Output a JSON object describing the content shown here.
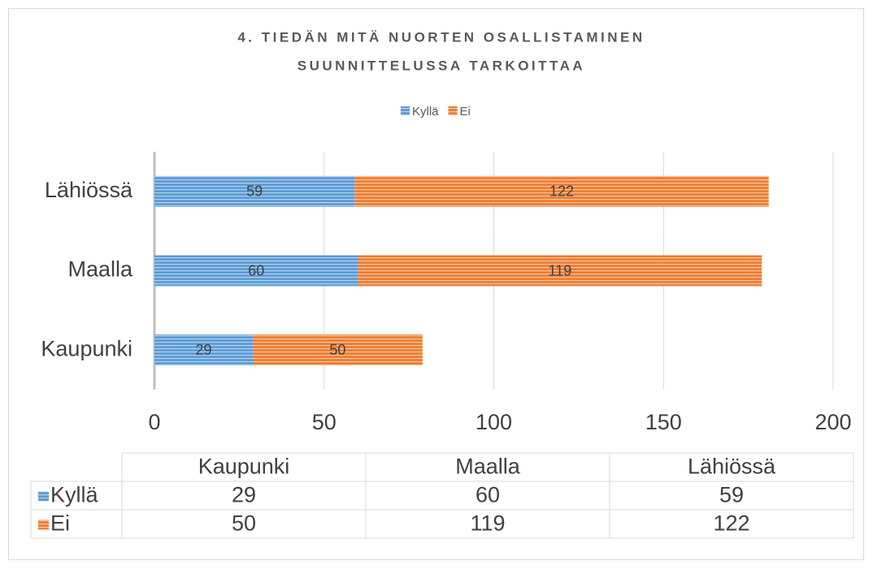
{
  "chart_data": {
    "type": "stacked-bar-horizontal",
    "title": [
      "4. TIEDÄN MITÄ NUORTEN OSALLISTAMINEN",
      "SUUNNITTELUSSA TARKOITTAA"
    ],
    "categories": [
      "Kaupunki",
      "Maalla",
      "Lähiössä"
    ],
    "series": [
      {
        "name": "Kyllä",
        "color": "#5b9bd5",
        "values": [
          29,
          60,
          59
        ]
      },
      {
        "name": "Ei",
        "color": "#ed7d31",
        "values": [
          50,
          119,
          122
        ]
      }
    ],
    "xlim": [
      0,
      200
    ],
    "xticks": [
      0,
      50,
      100,
      150,
      200
    ],
    "grid": true,
    "legend": "top",
    "data_table": true
  }
}
